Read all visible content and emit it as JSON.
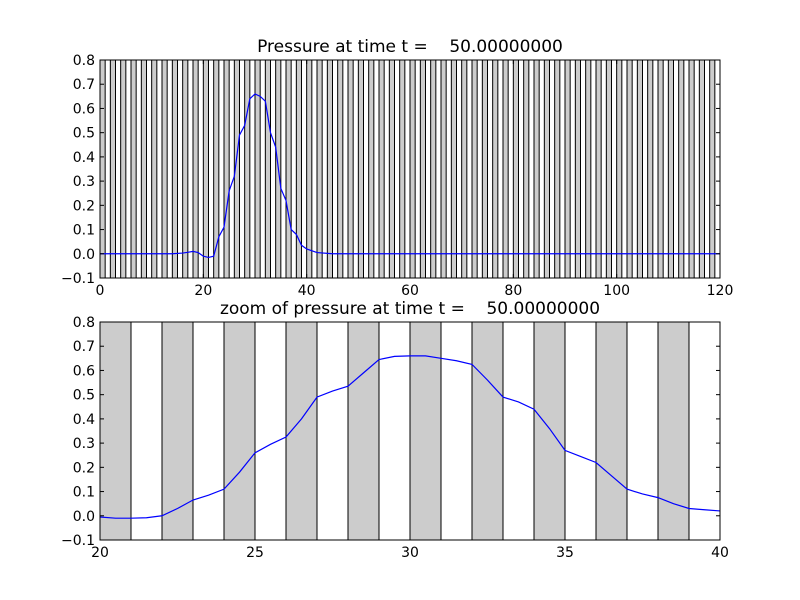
{
  "chart_data": [
    {
      "type": "line",
      "title": "Pressure at time t =    50.00000000",
      "xlim": [
        0,
        120
      ],
      "ylim": [
        -0.1,
        0.8
      ],
      "xticks": [
        "0",
        "20",
        "40",
        "60",
        "80",
        "100",
        "120"
      ],
      "yticks": [
        "−0.1",
        "0.0",
        "0.1",
        "0.2",
        "0.3",
        "0.4",
        "0.5",
        "0.6",
        "0.7",
        "0.8"
      ],
      "shaded_intervals": {
        "start": 0,
        "end": 120,
        "width": 1,
        "fill": "#cccccc",
        "edge": "#000000"
      },
      "line_color": "#0000ff",
      "series": [
        {
          "x": [
            0,
            5,
            10,
            14,
            16,
            17,
            18,
            19,
            20,
            21,
            22,
            23,
            24,
            25,
            26,
            27,
            28,
            29,
            30,
            31,
            32,
            33,
            34,
            35,
            36,
            37,
            38,
            39,
            40,
            42,
            45,
            50,
            60,
            80,
            100,
            120
          ],
          "y": [
            0.0,
            0.0,
            0.0,
            0.0,
            0.003,
            0.006,
            0.01,
            0.005,
            -0.01,
            -0.015,
            -0.01,
            0.07,
            0.11,
            0.26,
            0.32,
            0.49,
            0.53,
            0.64,
            0.66,
            0.65,
            0.63,
            0.5,
            0.44,
            0.27,
            0.22,
            0.1,
            0.08,
            0.035,
            0.02,
            0.005,
            0.0,
            0.0,
            0.0,
            0.0,
            0.0,
            0.0
          ]
        }
      ]
    },
    {
      "type": "line",
      "title": "zoom of pressure at time t =    50.00000000",
      "xlim": [
        20,
        40
      ],
      "ylim": [
        -0.1,
        0.8
      ],
      "xticks": [
        "20",
        "25",
        "30",
        "35",
        "40"
      ],
      "yticks": [
        "−0.1",
        "0.0",
        "0.1",
        "0.2",
        "0.3",
        "0.4",
        "0.5",
        "0.6",
        "0.7",
        "0.8"
      ],
      "shaded_intervals": {
        "start": 20,
        "end": 40,
        "width": 1,
        "fill": "#cccccc",
        "edge": "#000000"
      },
      "line_color": "#0000ff",
      "series": [
        {
          "x": [
            20,
            20.5,
            21,
            21.5,
            22,
            22.5,
            23,
            23.5,
            24,
            24.5,
            25,
            25.5,
            26,
            26.5,
            27,
            27.5,
            28,
            28.5,
            29,
            29.5,
            30,
            30.5,
            31,
            31.5,
            32,
            32.5,
            33,
            33.5,
            34,
            34.5,
            35,
            35.5,
            36,
            36.5,
            37,
            37.5,
            38,
            38.5,
            39,
            39.5,
            40
          ],
          "y": [
            -0.005,
            -0.01,
            -0.01,
            -0.008,
            0.0,
            0.03,
            0.065,
            0.085,
            0.11,
            0.18,
            0.26,
            0.295,
            0.325,
            0.4,
            0.49,
            0.515,
            0.535,
            0.59,
            0.645,
            0.658,
            0.66,
            0.66,
            0.65,
            0.64,
            0.625,
            0.56,
            0.49,
            0.47,
            0.44,
            0.36,
            0.27,
            0.245,
            0.22,
            0.165,
            0.11,
            0.09,
            0.075,
            0.05,
            0.03,
            0.025,
            0.02
          ]
        }
      ]
    }
  ]
}
